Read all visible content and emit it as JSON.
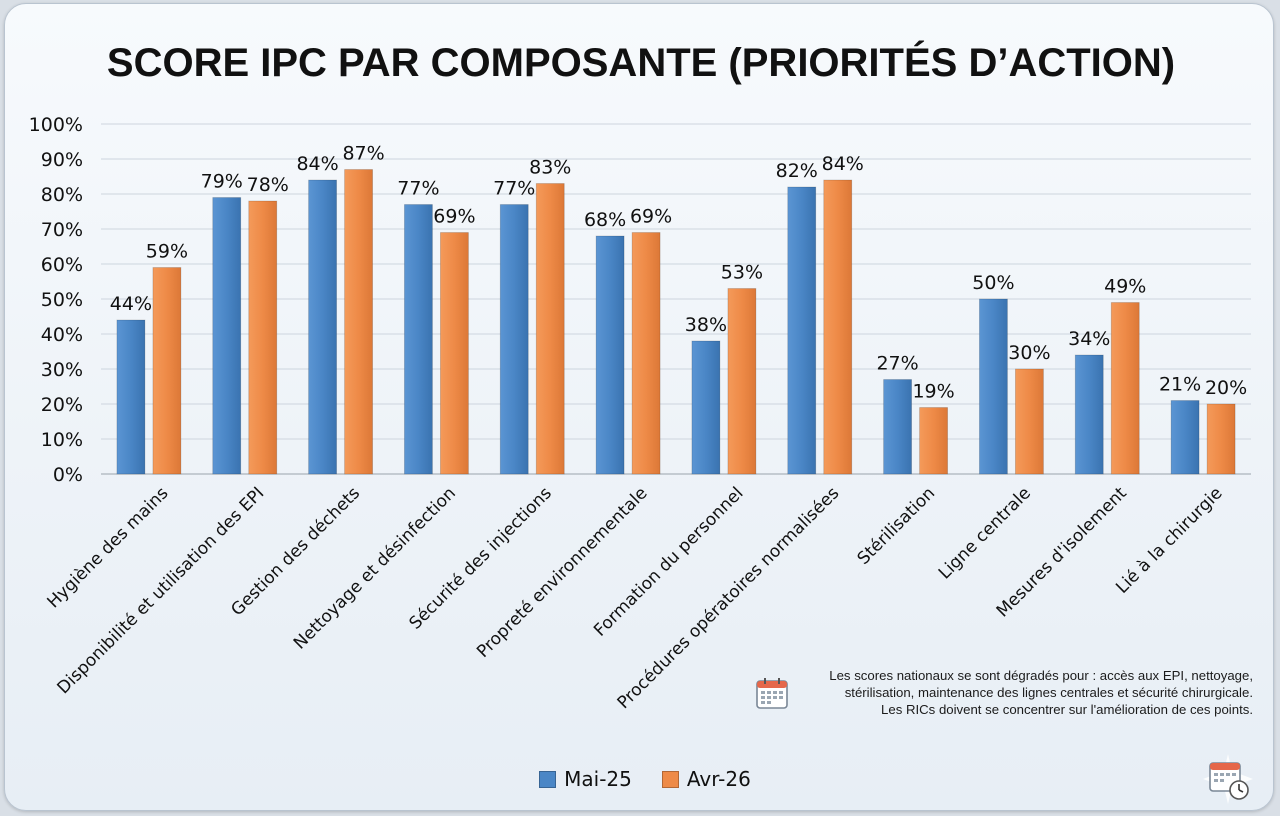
{
  "chart_data": {
    "type": "bar",
    "title": "SCORE IPC PAR COMPOSANTE (PRIORITÉS D’ACTION)",
    "xlabel": "",
    "ylabel": "",
    "ylim": [
      0,
      100
    ],
    "yticks": [
      "0%",
      "10%",
      "20%",
      "30%",
      "40%",
      "50%",
      "60%",
      "70%",
      "80%",
      "90%",
      "100%"
    ],
    "grid": true,
    "legend_position": "bottom-center",
    "categories": [
      "Hygiène des mains",
      "Disponibilité et utilisation des EPI",
      "Gestion des déchets",
      "Nettoyage et désinfection",
      "Sécurité des injections",
      "Propreté environnementale",
      "Formation du personnel",
      "Procédures opératoires normalisées",
      "Stérilisation",
      "Ligne centrale",
      "Mesures d'isolement",
      "Lié à la chirurgie"
    ],
    "series": [
      {
        "name": "Mai-25",
        "color": "#4a86c6",
        "values": [
          44,
          79,
          84,
          77,
          77,
          68,
          38,
          82,
          27,
          50,
          34,
          21
        ],
        "labels": [
          "44%",
          "79%",
          "84%",
          "77%",
          "77%",
          "68%",
          "38%",
          "82%",
          "27%",
          "50%",
          "34%",
          "21%"
        ]
      },
      {
        "name": "Avr-26",
        "color": "#ee8a47",
        "values": [
          59,
          78,
          87,
          69,
          83,
          69,
          53,
          84,
          19,
          30,
          49,
          20
        ],
        "labels": [
          "59%",
          "78%",
          "87%",
          "69%",
          "83%",
          "69%",
          "53%",
          "84%",
          "19%",
          "30%",
          "49%",
          "20%"
        ]
      }
    ]
  },
  "note": {
    "lines": [
      "Les scores nationaux se sont dégradés pour : accès aux EPI, nettoyage,",
      "stérilisation, maintenance des lignes centrales et sécurité chirurgicale.",
      "Les RICs doivent se concentrer sur l'amélioration de ces points."
    ],
    "icon": "calendar-icon"
  },
  "legend": {
    "items": [
      {
        "label": "Mai-25",
        "color": "#4a86c6"
      },
      {
        "label": "Avr-26",
        "color": "#ee8a47"
      }
    ]
  },
  "corner_icon": "calendar-clock-icon"
}
